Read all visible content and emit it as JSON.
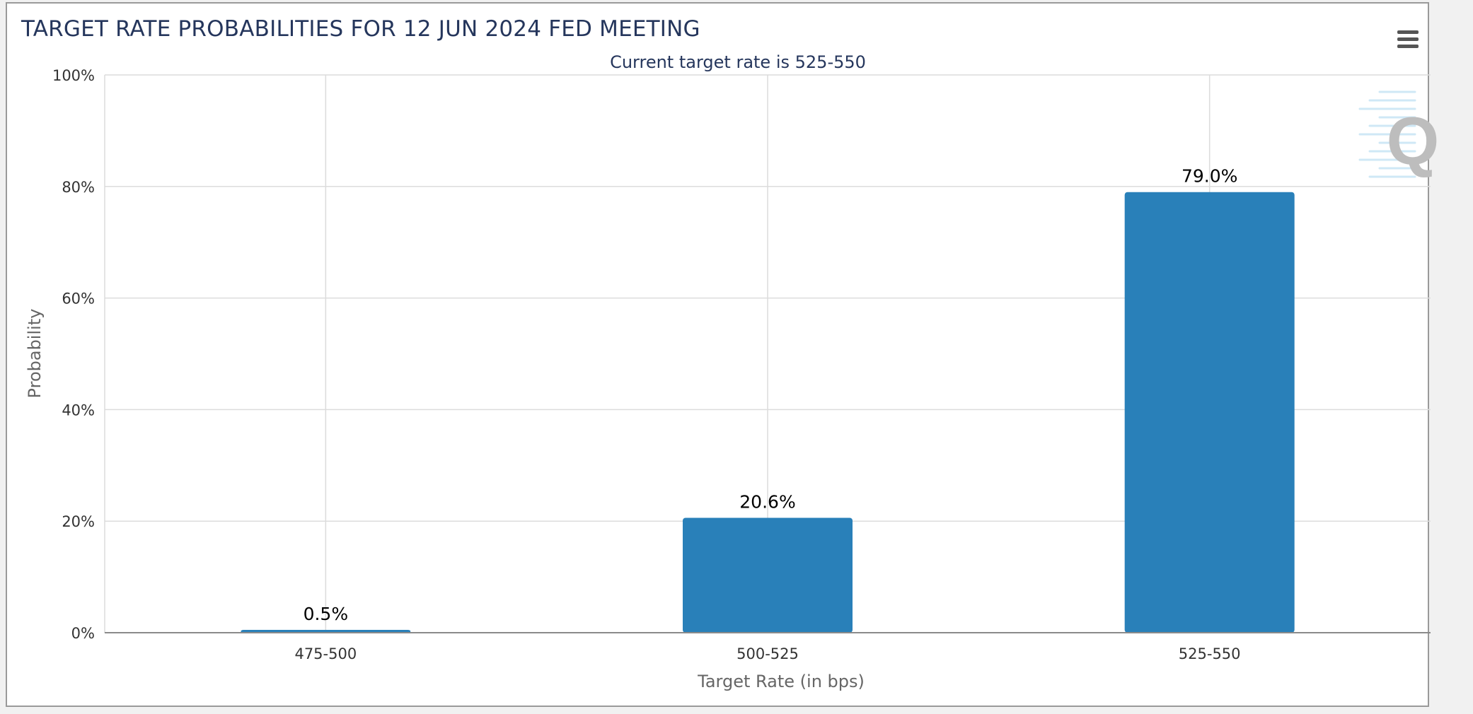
{
  "chart_data": {
    "type": "bar",
    "title": "TARGET RATE PROBABILITIES FOR 12 JUN 2024 FED MEETING",
    "subtitle": "Current target rate is 525-550",
    "xlabel": "Target Rate (in bps)",
    "ylabel": "Probability",
    "categories": [
      "475-500",
      "500-525",
      "525-550"
    ],
    "values": [
      0.5,
      20.6,
      79.0
    ],
    "data_labels": [
      "0.5%",
      "20.6%",
      "79.0%"
    ],
    "ylim": [
      0,
      100
    ],
    "yticks": [
      0,
      20,
      40,
      60,
      80,
      100
    ],
    "ytick_labels": [
      "0%",
      "20%",
      "40%",
      "60%",
      "80%",
      "100%"
    ],
    "grid": true,
    "bar_color": "#2980b9"
  },
  "toolbar": {
    "menu_icon": "hamburger-menu-icon"
  },
  "watermark": {
    "icon": "q-logo-icon",
    "text": "Q"
  }
}
